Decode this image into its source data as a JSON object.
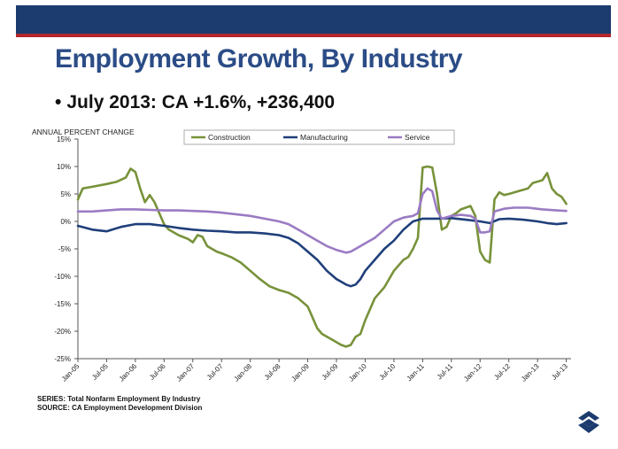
{
  "header": {
    "title": "Employment Growth, By Industry",
    "bullet_symbol": "•",
    "bullet": "July 2013: CA +1.6%, +236,400"
  },
  "colors": {
    "header_bar": "#1c3b6e",
    "header_rule": "#b4262c",
    "title": "#2b4c86",
    "construction": "#78923a",
    "manufacturing": "#1f3f7a",
    "service": "#9b7bc4"
  },
  "footer": {
    "series": "SERIES: Total Nonfarm Employment By Industry",
    "source": "SOURCE:  CA Employment Development Division"
  },
  "chart_data": {
    "type": "line",
    "ylabel": "ANNUAL PERCENT CHANGE",
    "xlabel": "",
    "ylim": [
      -25,
      15
    ],
    "x_range": [
      0,
      103
    ],
    "yticks": [
      {
        "value": 15,
        "label": "15%"
      },
      {
        "value": 10,
        "label": "10%"
      },
      {
        "value": 5,
        "label": "5%"
      },
      {
        "value": 0,
        "label": "0%"
      },
      {
        "value": -5,
        "label": "-5%"
      },
      {
        "value": -10,
        "label": "-10%"
      },
      {
        "value": -15,
        "label": "-15%"
      },
      {
        "value": -20,
        "label": "-20%"
      },
      {
        "value": -25,
        "label": "-25%"
      }
    ],
    "xticks": [
      {
        "x": 0,
        "label": "Jan-05"
      },
      {
        "x": 6,
        "label": "Jul-05"
      },
      {
        "x": 12,
        "label": "Jan-06"
      },
      {
        "x": 18,
        "label": "Jul-06"
      },
      {
        "x": 24,
        "label": "Jan-07"
      },
      {
        "x": 30,
        "label": "Jul-07"
      },
      {
        "x": 36,
        "label": "Jan-08"
      },
      {
        "x": 42,
        "label": "Jul-08"
      },
      {
        "x": 48,
        "label": "Jan-09"
      },
      {
        "x": 54,
        "label": "Jul-09"
      },
      {
        "x": 60,
        "label": "Jan-10"
      },
      {
        "x": 66,
        "label": "Jul-10"
      },
      {
        "x": 72,
        "label": "Jan-11"
      },
      {
        "x": 78,
        "label": "Jul-11"
      },
      {
        "x": 84,
        "label": "Jan-12"
      },
      {
        "x": 90,
        "label": "Jul-12"
      },
      {
        "x": 96,
        "label": "Jan-13"
      },
      {
        "x": 102,
        "label": "Jul-13"
      }
    ],
    "legend_position": "top",
    "grid": false,
    "series": [
      {
        "name": "Construction",
        "color": "#78923a",
        "points": [
          [
            0,
            4
          ],
          [
            1,
            6
          ],
          [
            3,
            6.3
          ],
          [
            6,
            6.8
          ],
          [
            8,
            7.2
          ],
          [
            10,
            8
          ],
          [
            11,
            9.6
          ],
          [
            12,
            9
          ],
          [
            13,
            6
          ],
          [
            14,
            3.5
          ],
          [
            15,
            4.8
          ],
          [
            16,
            3.5
          ],
          [
            17,
            1.5
          ],
          [
            18,
            -0.5
          ],
          [
            19,
            -1.5
          ],
          [
            21,
            -2.5
          ],
          [
            23,
            -3.2
          ],
          [
            24,
            -3.8
          ],
          [
            25,
            -2.5
          ],
          [
            26,
            -2.8
          ],
          [
            27,
            -4.5
          ],
          [
            28,
            -5
          ],
          [
            29,
            -5.5
          ],
          [
            30,
            -5.8
          ],
          [
            32,
            -6.5
          ],
          [
            34,
            -7.5
          ],
          [
            36,
            -9
          ],
          [
            38,
            -10.5
          ],
          [
            40,
            -11.8
          ],
          [
            42,
            -12.5
          ],
          [
            44,
            -13
          ],
          [
            46,
            -14
          ],
          [
            48,
            -15.5
          ],
          [
            49,
            -17.5
          ],
          [
            50,
            -19.5
          ],
          [
            51,
            -20.5
          ],
          [
            53,
            -21.5
          ],
          [
            55,
            -22.5
          ],
          [
            56,
            -22.8
          ],
          [
            57,
            -22.5
          ],
          [
            58,
            -21
          ],
          [
            59,
            -20.5
          ],
          [
            60,
            -18
          ],
          [
            61,
            -16
          ],
          [
            62,
            -14
          ],
          [
            64,
            -12
          ],
          [
            66,
            -9
          ],
          [
            68,
            -7
          ],
          [
            69,
            -6.5
          ],
          [
            70,
            -5
          ],
          [
            71,
            -3
          ],
          [
            72,
            9.8
          ],
          [
            73,
            10
          ],
          [
            74,
            9.8
          ],
          [
            75,
            5
          ],
          [
            76,
            -1.5
          ],
          [
            77,
            -1
          ],
          [
            78,
            1
          ],
          [
            79,
            1.5
          ],
          [
            80,
            2.2
          ],
          [
            82,
            2.8
          ],
          [
            83,
            1
          ],
          [
            84,
            -5.5
          ],
          [
            85,
            -7
          ],
          [
            86,
            -7.5
          ],
          [
            87,
            4
          ],
          [
            88,
            5.3
          ],
          [
            89,
            4.8
          ],
          [
            90,
            5
          ],
          [
            92,
            5.5
          ],
          [
            94,
            6
          ],
          [
            95,
            7
          ],
          [
            97,
            7.5
          ],
          [
            98,
            8.8
          ],
          [
            99,
            6
          ],
          [
            100,
            5
          ],
          [
            101,
            4.5
          ],
          [
            102,
            3.2
          ]
        ]
      },
      {
        "name": "Manufacturing",
        "color": "#1f3f7a",
        "points": [
          [
            0,
            -0.8
          ],
          [
            3,
            -1.5
          ],
          [
            6,
            -1.8
          ],
          [
            9,
            -1
          ],
          [
            12,
            -0.5
          ],
          [
            15,
            -0.5
          ],
          [
            18,
            -0.8
          ],
          [
            21,
            -1.2
          ],
          [
            24,
            -1.5
          ],
          [
            27,
            -1.7
          ],
          [
            30,
            -1.8
          ],
          [
            33,
            -2
          ],
          [
            36,
            -2
          ],
          [
            39,
            -2.2
          ],
          [
            42,
            -2.5
          ],
          [
            44,
            -3
          ],
          [
            46,
            -4
          ],
          [
            48,
            -5.5
          ],
          [
            50,
            -7
          ],
          [
            52,
            -9
          ],
          [
            54,
            -10.5
          ],
          [
            56,
            -11.5
          ],
          [
            57,
            -11.8
          ],
          [
            58,
            -11.5
          ],
          [
            59,
            -10.5
          ],
          [
            60,
            -9
          ],
          [
            62,
            -7
          ],
          [
            64,
            -5
          ],
          [
            66,
            -3.5
          ],
          [
            68,
            -1.5
          ],
          [
            70,
            0
          ],
          [
            72,
            0.5
          ],
          [
            75,
            0.5
          ],
          [
            78,
            0.6
          ],
          [
            81,
            0.3
          ],
          [
            84,
            0
          ],
          [
            86,
            -0.3
          ],
          [
            88,
            0.4
          ],
          [
            90,
            0.5
          ],
          [
            93,
            0.3
          ],
          [
            96,
            0
          ],
          [
            98,
            -0.3
          ],
          [
            100,
            -0.5
          ],
          [
            102,
            -0.3
          ]
        ]
      },
      {
        "name": "Service",
        "color": "#9b7bc4",
        "points": [
          [
            0,
            1.8
          ],
          [
            3,
            1.8
          ],
          [
            6,
            2
          ],
          [
            9,
            2.2
          ],
          [
            12,
            2.2
          ],
          [
            15,
            2.1
          ],
          [
            18,
            2
          ],
          [
            21,
            2
          ],
          [
            24,
            1.9
          ],
          [
            27,
            1.8
          ],
          [
            30,
            1.6
          ],
          [
            33,
            1.3
          ],
          [
            36,
            1
          ],
          [
            39,
            0.5
          ],
          [
            42,
            0
          ],
          [
            44,
            -0.5
          ],
          [
            46,
            -1.5
          ],
          [
            48,
            -2.5
          ],
          [
            50,
            -3.5
          ],
          [
            52,
            -4.5
          ],
          [
            54,
            -5.2
          ],
          [
            56,
            -5.7
          ],
          [
            57,
            -5.5
          ],
          [
            58,
            -5
          ],
          [
            60,
            -4
          ],
          [
            62,
            -3
          ],
          [
            64,
            -1.5
          ],
          [
            66,
            0
          ],
          [
            68,
            0.7
          ],
          [
            70,
            1
          ],
          [
            71,
            1.5
          ],
          [
            72,
            5
          ],
          [
            73,
            6
          ],
          [
            74,
            5.5
          ],
          [
            75,
            2
          ],
          [
            76,
            0.5
          ],
          [
            78,
            1
          ],
          [
            80,
            1.2
          ],
          [
            82,
            1
          ],
          [
            83,
            0.5
          ],
          [
            84,
            -2
          ],
          [
            85,
            -2
          ],
          [
            86,
            -1.8
          ],
          [
            87,
            1.8
          ],
          [
            89,
            2.3
          ],
          [
            91,
            2.5
          ],
          [
            94,
            2.5
          ],
          [
            97,
            2.2
          ],
          [
            100,
            2
          ],
          [
            102,
            1.9
          ]
        ]
      }
    ]
  }
}
